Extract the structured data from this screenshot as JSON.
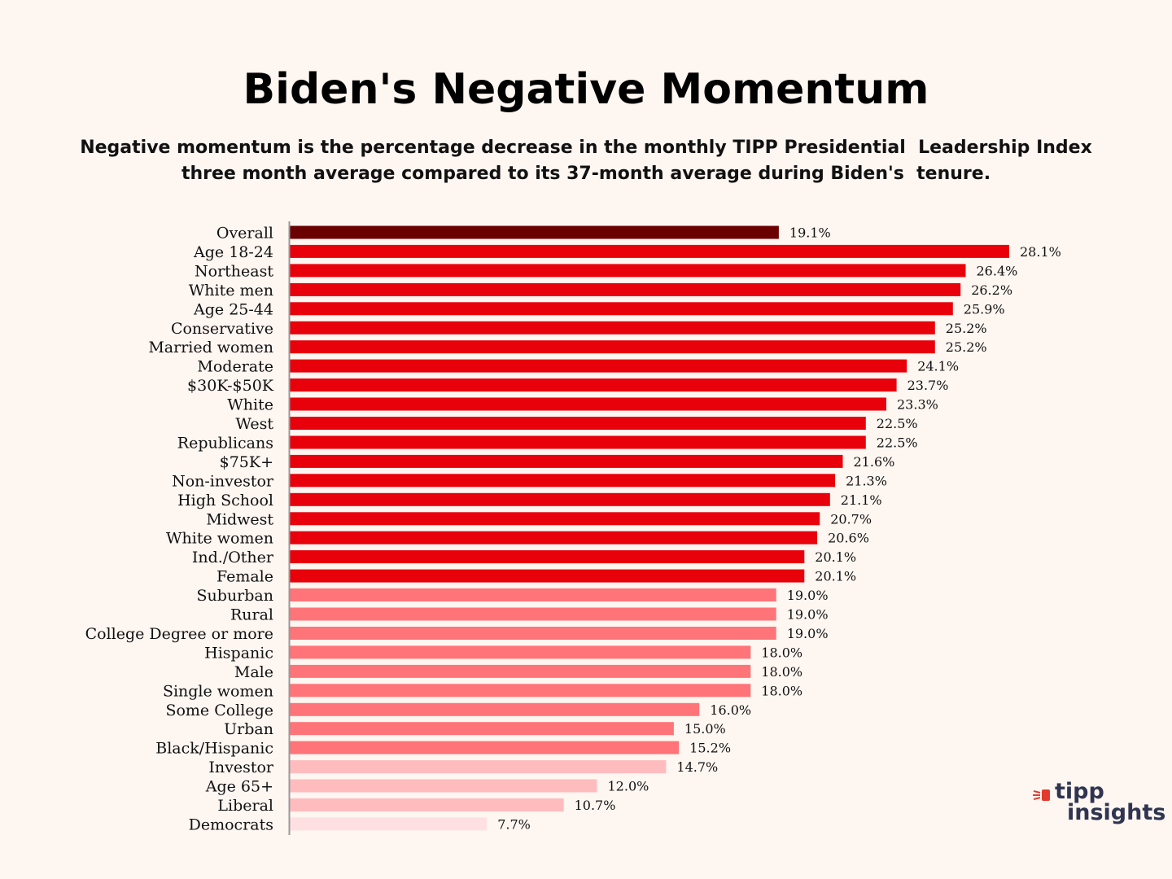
{
  "title": "Biden's Negative Momentum",
  "subtitle": "Negative momentum is the percentage decrease in the monthly TIPP Presidential  Leadership Index\nthree month average compared to its 37-month average during Biden's  tenure.",
  "logo": {
    "line1": "tipp",
    "line2": "insights"
  },
  "colors": {
    "background": "#fdf6f1",
    "overall": "#6b0000",
    "high": "#e8000b",
    "mid": "#ff7478",
    "low": "#ffbcbe",
    "lowest": "#ffe0e2",
    "axis": "#999999",
    "logo_accent": "#e23b2e"
  },
  "chart_data": {
    "type": "bar",
    "orientation": "horizontal",
    "title": "Biden's Negative Momentum",
    "xlabel": "",
    "ylabel": "",
    "xlim": [
      0,
      28.1
    ],
    "grid": false,
    "value_suffix": "%",
    "categories": [
      "Overall",
      "Age 18-24",
      "Northeast",
      "White men",
      "Age 25-44",
      "Conservative",
      "Married women",
      "Moderate",
      "$30K-$50K",
      "White",
      "West",
      "Republicans",
      "$75K+",
      "Non-investor",
      "High School",
      "Midwest",
      "White women",
      "Ind./Other",
      "Female",
      "Suburban",
      "Rural",
      "College Degree or more",
      "Hispanic",
      "Male",
      "Single women",
      "Some College",
      "Urban",
      "Black/Hispanic",
      "Investor",
      "Age 65+",
      "Liberal",
      "Democrats"
    ],
    "values": [
      19.1,
      28.1,
      26.4,
      26.2,
      25.9,
      25.2,
      25.2,
      24.1,
      23.7,
      23.3,
      22.5,
      22.5,
      21.6,
      21.3,
      21.1,
      20.7,
      20.6,
      20.1,
      20.1,
      19.0,
      19.0,
      19.0,
      18.0,
      18.0,
      18.0,
      16.0,
      15.0,
      15.2,
      14.7,
      12.0,
      10.7,
      7.7
    ],
    "value_labels": [
      "19.1%",
      "28.1%",
      "26.4%",
      "26.2%",
      "25.9%",
      "25.2%",
      "25.2%",
      "24.1%",
      "23.7%",
      "23.3%",
      "22.5%",
      "22.5%",
      "21.6%",
      "21.3%",
      "21.1%",
      "20.7%",
      "20.6%",
      "20.1%",
      "20.1%",
      "19.0%",
      "19.0%",
      "19.0%",
      "18.0%",
      "18.0%",
      "18.0%",
      "16.0%",
      "15.0%",
      "15.2%",
      "14.7%",
      "12.0%",
      "10.7%",
      "7.7%"
    ],
    "color_groups": [
      "overall",
      "high",
      "high",
      "high",
      "high",
      "high",
      "high",
      "high",
      "high",
      "high",
      "high",
      "high",
      "high",
      "high",
      "high",
      "high",
      "high",
      "high",
      "high",
      "mid",
      "mid",
      "mid",
      "mid",
      "mid",
      "mid",
      "mid",
      "mid",
      "mid",
      "low",
      "low",
      "low",
      "lowest"
    ]
  }
}
